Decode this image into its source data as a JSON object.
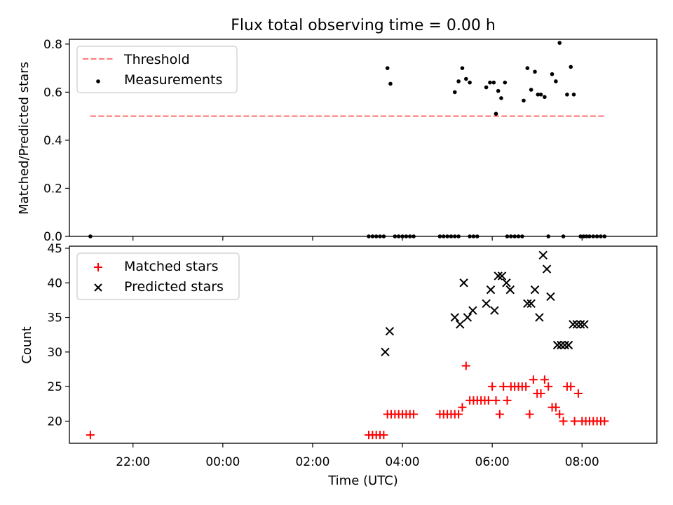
{
  "title": "Flux total observing time = 0.00 h",
  "colors": {
    "threshold": "#ff7f7f",
    "measurements": "#000000",
    "matched": "#ff0000",
    "predicted": "#000000"
  },
  "chart_data": [
    {
      "type": "scatter",
      "ylabel": "Matched/Predicted stars",
      "xlabel": "",
      "ylim": [
        0,
        0.82
      ],
      "yticks": [
        0.0,
        0.2,
        0.4,
        0.6,
        0.8
      ],
      "ytick_labels": [
        "0.0",
        "0.2",
        "0.4",
        "0.6",
        "0.8"
      ],
      "legend_placement": "top-left",
      "grid": false,
      "threshold": {
        "name": "Threshold",
        "y": 0.5,
        "x_start": "21:03",
        "x_end": "08:30"
      },
      "series": [
        {
          "name": "Measurements",
          "marker": "dot",
          "points": [
            [
              "21:03",
              0
            ],
            [
              "03:15",
              0
            ],
            [
              "03:20",
              0
            ],
            [
              "03:25",
              0
            ],
            [
              "03:30",
              0
            ],
            [
              "03:35",
              0
            ],
            [
              "03:40",
              0.7
            ],
            [
              "03:44",
              0.635
            ],
            [
              "03:50",
              0
            ],
            [
              "03:55",
              0
            ],
            [
              "04:00",
              0
            ],
            [
              "04:05",
              0
            ],
            [
              "04:10",
              0
            ],
            [
              "04:15",
              0
            ],
            [
              "04:50",
              0
            ],
            [
              "04:55",
              0
            ],
            [
              "05:00",
              0
            ],
            [
              "05:05",
              0
            ],
            [
              "05:10",
              0
            ],
            [
              "05:15",
              0
            ],
            [
              "05:10",
              0.6
            ],
            [
              "05:15",
              0.645
            ],
            [
              "05:20",
              0.7
            ],
            [
              "05:25",
              0.655
            ],
            [
              "05:30",
              0.64
            ],
            [
              "05:30",
              0
            ],
            [
              "05:35",
              0
            ],
            [
              "05:40",
              0
            ],
            [
              "05:52",
              0.62
            ],
            [
              "05:57",
              0.64
            ],
            [
              "06:02",
              0.64
            ],
            [
              "06:05",
              0.51
            ],
            [
              "06:08",
              0.605
            ],
            [
              "06:12",
              0.575
            ],
            [
              "06:17",
              0.64
            ],
            [
              "06:20",
              0
            ],
            [
              "06:25",
              0
            ],
            [
              "06:30",
              0
            ],
            [
              "06:35",
              0
            ],
            [
              "06:40",
              0
            ],
            [
              "06:42",
              0.565
            ],
            [
              "06:47",
              0.7
            ],
            [
              "06:52",
              0.61
            ],
            [
              "06:57",
              0.685
            ],
            [
              "07:01",
              0.59
            ],
            [
              "07:05",
              0.59
            ],
            [
              "07:10",
              0.58
            ],
            [
              "07:15",
              0
            ],
            [
              "07:20",
              0.675
            ],
            [
              "07:25",
              0.645
            ],
            [
              "07:30",
              0.805
            ],
            [
              "07:35",
              0
            ],
            [
              "07:40",
              0.59
            ],
            [
              "07:45",
              0.705
            ],
            [
              "07:49",
              0.59
            ],
            [
              "07:58",
              0
            ],
            [
              "08:02",
              0
            ],
            [
              "08:06",
              0
            ],
            [
              "08:10",
              0
            ],
            [
              "08:15",
              0
            ],
            [
              "08:20",
              0
            ],
            [
              "08:25",
              0
            ],
            [
              "08:30",
              0
            ]
          ]
        }
      ]
    },
    {
      "type": "scatter",
      "ylabel": "Count",
      "xlabel": "Time (UTC)",
      "ylim": [
        16.8,
        45.3
      ],
      "yticks": [
        20,
        25,
        30,
        35,
        40,
        45
      ],
      "ytick_labels": [
        "20",
        "25",
        "30",
        "35",
        "40",
        "45"
      ],
      "xlim": [
        "20:35",
        "09:40"
      ],
      "xticks": [
        "22:00",
        "00:00",
        "02:00",
        "04:00",
        "06:00",
        "08:00"
      ],
      "legend_placement": "top-left",
      "grid": false,
      "series": [
        {
          "name": "Matched stars",
          "marker": "plus",
          "points": [
            [
              "21:03",
              18
            ],
            [
              "03:15",
              18
            ],
            [
              "03:20",
              18
            ],
            [
              "03:25",
              18
            ],
            [
              "03:30",
              18
            ],
            [
              "03:35",
              18
            ],
            [
              "03:40",
              21
            ],
            [
              "03:45",
              21
            ],
            [
              "03:50",
              21
            ],
            [
              "03:55",
              21
            ],
            [
              "04:00",
              21
            ],
            [
              "04:05",
              21
            ],
            [
              "04:10",
              21
            ],
            [
              "04:15",
              21
            ],
            [
              "04:50",
              21
            ],
            [
              "04:55",
              21
            ],
            [
              "05:00",
              21
            ],
            [
              "05:05",
              21
            ],
            [
              "05:10",
              21
            ],
            [
              "05:15",
              21
            ],
            [
              "05:20",
              22
            ],
            [
              "05:25",
              28
            ],
            [
              "05:30",
              23
            ],
            [
              "05:35",
              23
            ],
            [
              "05:40",
              23
            ],
            [
              "05:45",
              23
            ],
            [
              "05:50",
              23
            ],
            [
              "05:55",
              23
            ],
            [
              "06:00",
              25
            ],
            [
              "06:05",
              23
            ],
            [
              "06:10",
              21
            ],
            [
              "06:15",
              25
            ],
            [
              "06:20",
              23
            ],
            [
              "06:25",
              25
            ],
            [
              "06:30",
              25
            ],
            [
              "06:35",
              25
            ],
            [
              "06:40",
              25
            ],
            [
              "06:45",
              25
            ],
            [
              "06:50",
              21
            ],
            [
              "06:55",
              26
            ],
            [
              "07:00",
              24
            ],
            [
              "07:05",
              24
            ],
            [
              "07:10",
              26
            ],
            [
              "07:15",
              25
            ],
            [
              "07:20",
              22
            ],
            [
              "07:25",
              22
            ],
            [
              "07:30",
              21
            ],
            [
              "07:35",
              20
            ],
            [
              "07:40",
              25
            ],
            [
              "07:45",
              25
            ],
            [
              "07:50",
              20
            ],
            [
              "07:55",
              24
            ],
            [
              "08:00",
              20
            ],
            [
              "08:05",
              20
            ],
            [
              "08:10",
              20
            ],
            [
              "08:15",
              20
            ],
            [
              "08:20",
              20
            ],
            [
              "08:25",
              20
            ],
            [
              "08:30",
              20
            ]
          ]
        },
        {
          "name": "Predicted stars",
          "marker": "x",
          "points": [
            [
              "03:37",
              30
            ],
            [
              "03:43",
              33
            ],
            [
              "05:10",
              35
            ],
            [
              "05:17",
              34
            ],
            [
              "05:22",
              40
            ],
            [
              "05:27",
              35
            ],
            [
              "05:34",
              36
            ],
            [
              "05:52",
              37
            ],
            [
              "05:58",
              39
            ],
            [
              "06:03",
              36
            ],
            [
              "06:08",
              41
            ],
            [
              "06:13",
              41
            ],
            [
              "06:19",
              40
            ],
            [
              "06:24",
              39
            ],
            [
              "06:47",
              37
            ],
            [
              "06:52",
              37
            ],
            [
              "06:57",
              39
            ],
            [
              "07:03",
              35
            ],
            [
              "07:08",
              44
            ],
            [
              "07:13",
              42
            ],
            [
              "07:18",
              38
            ],
            [
              "07:27",
              31
            ],
            [
              "07:32",
              31
            ],
            [
              "07:37",
              31
            ],
            [
              "07:42",
              31
            ],
            [
              "07:48",
              34
            ],
            [
              "07:53",
              34
            ],
            [
              "07:58",
              34
            ],
            [
              "08:03",
              34
            ]
          ]
        }
      ]
    }
  ]
}
